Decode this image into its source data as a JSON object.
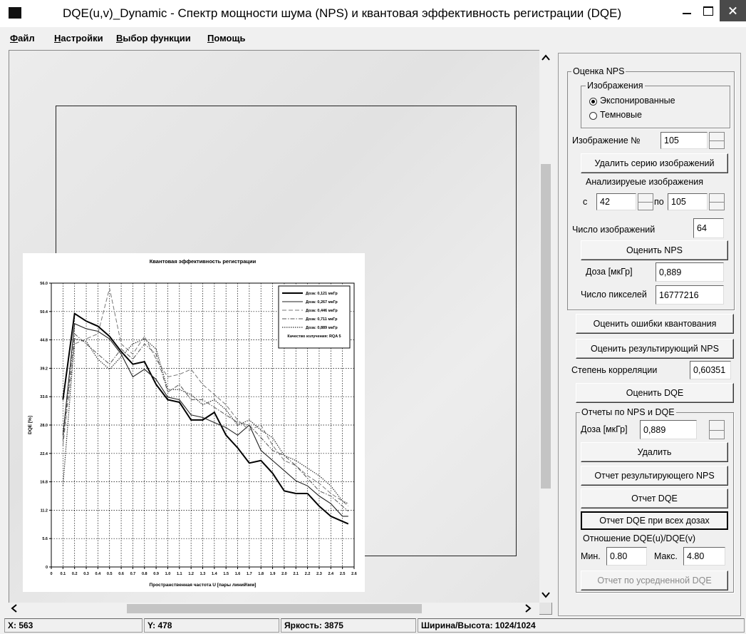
{
  "window": {
    "title": "DQE(u,v)_Dynamic - Спектр мощности шума (NPS) и квантовая эффективность регистрации (DQE)"
  },
  "menu": [
    "Файл",
    "Настройки",
    "Выбор функции",
    "Помощь"
  ],
  "chart_data": {
    "type": "line",
    "title": "Квантовая эффективность регистрации",
    "x_label": "Пространственная частота U [пары линий\\мм]",
    "y_label": "DQE [%]",
    "x": [
      0.1,
      0.2,
      0.3,
      0.4,
      0.5,
      0.6,
      0.7,
      0.8,
      0.9,
      1.0,
      1.1,
      1.2,
      1.3,
      1.4,
      1.5,
      1.6,
      1.7,
      1.8,
      1.9,
      2.0,
      2.1,
      2.2,
      2.3,
      2.4,
      2.5,
      2.55
    ],
    "series": [
      {
        "name": "Доза: 0,121 мкГр",
        "color": "#000000",
        "line_style": "bold",
        "values": [
          33,
          50,
          48.5,
          47.5,
          45.5,
          42.5,
          40,
          40.5,
          36,
          33,
          32.5,
          29,
          29,
          30.5,
          26,
          23.5,
          20.5,
          21,
          18.5,
          15,
          14.5,
          14.5,
          12,
          10,
          9,
          8.5
        ]
      },
      {
        "name": "Доза: 0,267 мкГр",
        "color": "#222222",
        "line_style": "solid",
        "values": [
          26,
          48,
          47,
          46.5,
          45,
          42,
          37.5,
          39,
          37,
          33.5,
          33,
          30,
          29.5,
          28.5,
          27.5,
          26,
          28,
          23,
          21,
          19,
          17,
          16,
          14,
          12.5,
          10,
          10
        ]
      },
      {
        "name": "Доза: 0,446 мкГр",
        "color": "#777777",
        "line_style": "dashed",
        "values": [
          24,
          44,
          45,
          46,
          55,
          44,
          42,
          45.5,
          41,
          37.5,
          38,
          39,
          36,
          34,
          32,
          29,
          27,
          28,
          24,
          21,
          20,
          18,
          16.5,
          14.5,
          13,
          12
        ]
      },
      {
        "name": "Доза: 0,711 мкГр",
        "color": "#555555",
        "line_style": "dashdot",
        "values": [
          25,
          46,
          44,
          42,
          40,
          43,
          41,
          44,
          42,
          34.5,
          36,
          33,
          33,
          31.5,
          30,
          28.5,
          28,
          25.5,
          23,
          22,
          20,
          17.5,
          15,
          14,
          12,
          11
        ]
      },
      {
        "name": "Доза: 0,889 мкГр",
        "color": "#333333",
        "line_style": "dotted",
        "values": [
          16,
          45,
          44.5,
          41,
          39,
          41.5,
          44,
          45,
          43,
          35,
          35,
          34,
          32,
          33,
          31,
          28,
          29,
          27,
          25.5,
          22,
          21,
          19.5,
          18,
          16,
          13,
          12.5
        ]
      }
    ],
    "legend_note": "Качество излучения: RQA 5",
    "legend": "upper right",
    "xlim": [
      0,
      2.6
    ],
    "xticks": [
      0,
      0.1,
      0.2,
      0.3,
      0.4,
      0.5,
      0.6,
      0.7,
      0.8,
      0.9,
      {
        "value": 1,
        "label": "1.0"
      },
      1.1,
      1.2,
      1.3,
      1.4,
      1.5,
      1.6,
      1.7,
      1.8,
      1.9,
      {
        "value": 2,
        "label": "2.0"
      },
      2.1,
      2.2,
      2.3,
      2.4,
      2.5,
      2.6
    ],
    "ylim": [
      0,
      56
    ],
    "yticks": [
      0,
      5.6,
      11.2,
      16.8,
      22.4,
      {
        "value": 28,
        "label": "28.0"
      },
      33.6,
      39.2,
      44.8,
      50.4,
      {
        "value": 56,
        "label": "56.0"
      }
    ],
    "grid": true
  },
  "panel": {
    "nps": {
      "title": "Оценка NPS",
      "images": {
        "title": "Изображения",
        "options": [
          "Экспонированные",
          "Темновые"
        ],
        "selected": 0
      },
      "image_no": {
        "label": "Изображение №",
        "value": "105"
      },
      "delete_series": "Удалить серию изображений",
      "analyzed": {
        "label": "Анализируеые изображения",
        "from_label": "с",
        "from": "42",
        "to_label": "по",
        "to": "105"
      },
      "count": {
        "label": "Число изображений",
        "value": "64"
      },
      "estimate_nps": "Оценить NPS",
      "dose": {
        "label": "Доза [мкГр]",
        "value": "0,889"
      },
      "pixels": {
        "label": "Число пикселей",
        "value": "16777216"
      }
    },
    "estimate_quant": "Оценить ошибки квантования",
    "estimate_result_nps": "Оценить результирующий NPS",
    "correlation": {
      "label": "Степень корреляции",
      "value": "0,60351"
    },
    "estimate_dqe": "Оценить DQE",
    "reports": {
      "title": "Отчеты по NPS и DQE",
      "dose": {
        "label": "Доза [мкГр]",
        "value": "0,889"
      },
      "delete": "Удалить",
      "report_nps": "Отчет результирующего NPS",
      "report_dqe": "Отчет DQE",
      "report_all": "Отчет DQE при всех дозах",
      "ratio": {
        "label": "Отношение DQE(u)/DQE(v)",
        "min_label": "Мин.",
        "min": "0.80",
        "max_label": "Макс.",
        "max": "4.80"
      },
      "report_avg": {
        "label": "Отчет по усредненной DQE",
        "enabled": false
      }
    }
  },
  "status": [
    "X: 563",
    "Y: 478",
    "Яркость: 3875",
    "Ширина/Высота: 1024/1024"
  ]
}
